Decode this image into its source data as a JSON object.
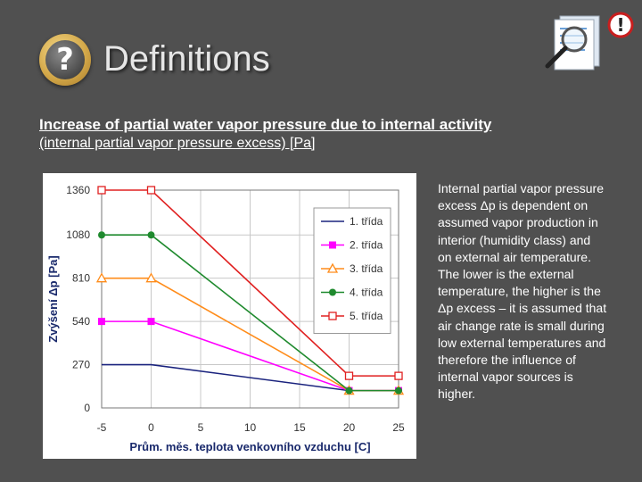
{
  "header": {
    "title": "Definitions",
    "help_icon": "question-mark-icon",
    "doc_icon": "document-magnifier-alert-icon"
  },
  "headings": {
    "line1": "Increase of partial water vapor pressure due to internal activity",
    "line2": "(internal partial vapor pressure excess) [Pa]"
  },
  "description": {
    "paragraph1": "Internal partial vapor pressure excess Δp is dependent on assumed vapor production in interior (humidity class) and on external air temperature.",
    "paragraph2": "The lower is the external temperature, the higher is the Δp excess – it is assumed that air change rate is small during low external temperatures and therefore the influence of internal vapor sources is higher."
  },
  "chart_data": {
    "type": "line",
    "xlabel": "Prům. měs. teplota venkovního vzduchu [C]",
    "ylabel": "Zvýšení Δp [Pa]",
    "xlim": [
      -5,
      25
    ],
    "ylim": [
      0,
      1360
    ],
    "xticks": [
      -5,
      0,
      5,
      10,
      15,
      20,
      25
    ],
    "yticks": [
      0,
      270,
      540,
      810,
      1080,
      1360
    ],
    "grid": true,
    "legend_position": "top-right",
    "series": [
      {
        "name": "1. třída",
        "color": "#1a237e",
        "marker": "none",
        "x": [
          -5,
          0,
          20,
          25
        ],
        "y": [
          270,
          270,
          108,
          108
        ]
      },
      {
        "name": "2. třída",
        "color": "#ff00ff",
        "marker": "square",
        "x": [
          -5,
          0,
          20,
          25
        ],
        "y": [
          540,
          540,
          108,
          108
        ]
      },
      {
        "name": "3. třída",
        "color": "#ff8c1a",
        "marker": "triangle",
        "x": [
          -5,
          0,
          20,
          25
        ],
        "y": [
          810,
          810,
          108,
          108
        ]
      },
      {
        "name": "4. třída",
        "color": "#1f8a2e",
        "marker": "circle",
        "x": [
          -5,
          0,
          20,
          25
        ],
        "y": [
          1080,
          1080,
          108,
          108
        ]
      },
      {
        "name": "5. třída",
        "color": "#e02020",
        "marker": "square-open",
        "x": [
          -5,
          0,
          20,
          25
        ],
        "y": [
          1360,
          1360,
          200,
          200
        ]
      }
    ]
  }
}
